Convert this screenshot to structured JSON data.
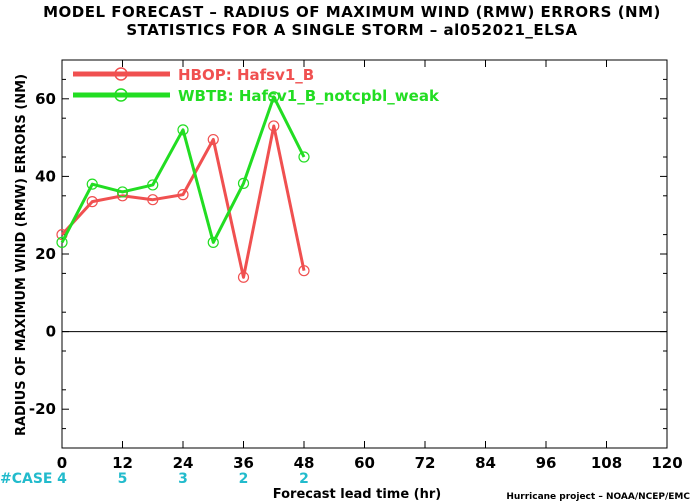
{
  "chart_data": {
    "type": "line",
    "title": "MODEL FORECAST – RADIUS OF MAXIMUM WIND (RMW) ERRORS (NM)",
    "subtitle": "STATISTICS FOR A SINGLE STORM – al052021_ELSA",
    "xlabel": "Forecast lead time (hr)",
    "ylabel": "RADIUS OF MAXIMUM WIND (RMW) ERRORS (NM)",
    "xlim": [
      0,
      120
    ],
    "ylim": [
      -30,
      70
    ],
    "xticks": [
      0,
      12,
      24,
      36,
      48,
      60,
      72,
      84,
      96,
      108,
      120
    ],
    "yticks": [
      -20,
      0,
      20,
      40,
      60
    ],
    "zero_line": true,
    "grid": false,
    "legend_position": "top-left",
    "series": [
      {
        "name": "HBOP: Hafsv1_B",
        "color": "#f05050",
        "x": [
          0,
          6,
          12,
          18,
          24,
          30,
          36,
          42,
          48
        ],
        "y": [
          25,
          33.5,
          35,
          34,
          35.3,
          49.5,
          14,
          53,
          15.7
        ]
      },
      {
        "name": "WBTB: Hafsv1_B_notcpbl_weak",
        "color": "#22dd22",
        "x": [
          0,
          6,
          12,
          18,
          24,
          30,
          36,
          42,
          48
        ],
        "y": [
          23,
          38,
          36,
          37.8,
          52,
          23,
          38.2,
          60.5,
          45
        ]
      }
    ],
    "case_counts": {
      "label": "#CASE",
      "x": [
        0,
        12,
        24,
        36,
        48
      ],
      "values": [
        "4",
        "5",
        "3",
        "2",
        "2"
      ],
      "color": "#22bbcc"
    },
    "footer": "Hurricane project – NOAA/NCEP/EMC"
  }
}
